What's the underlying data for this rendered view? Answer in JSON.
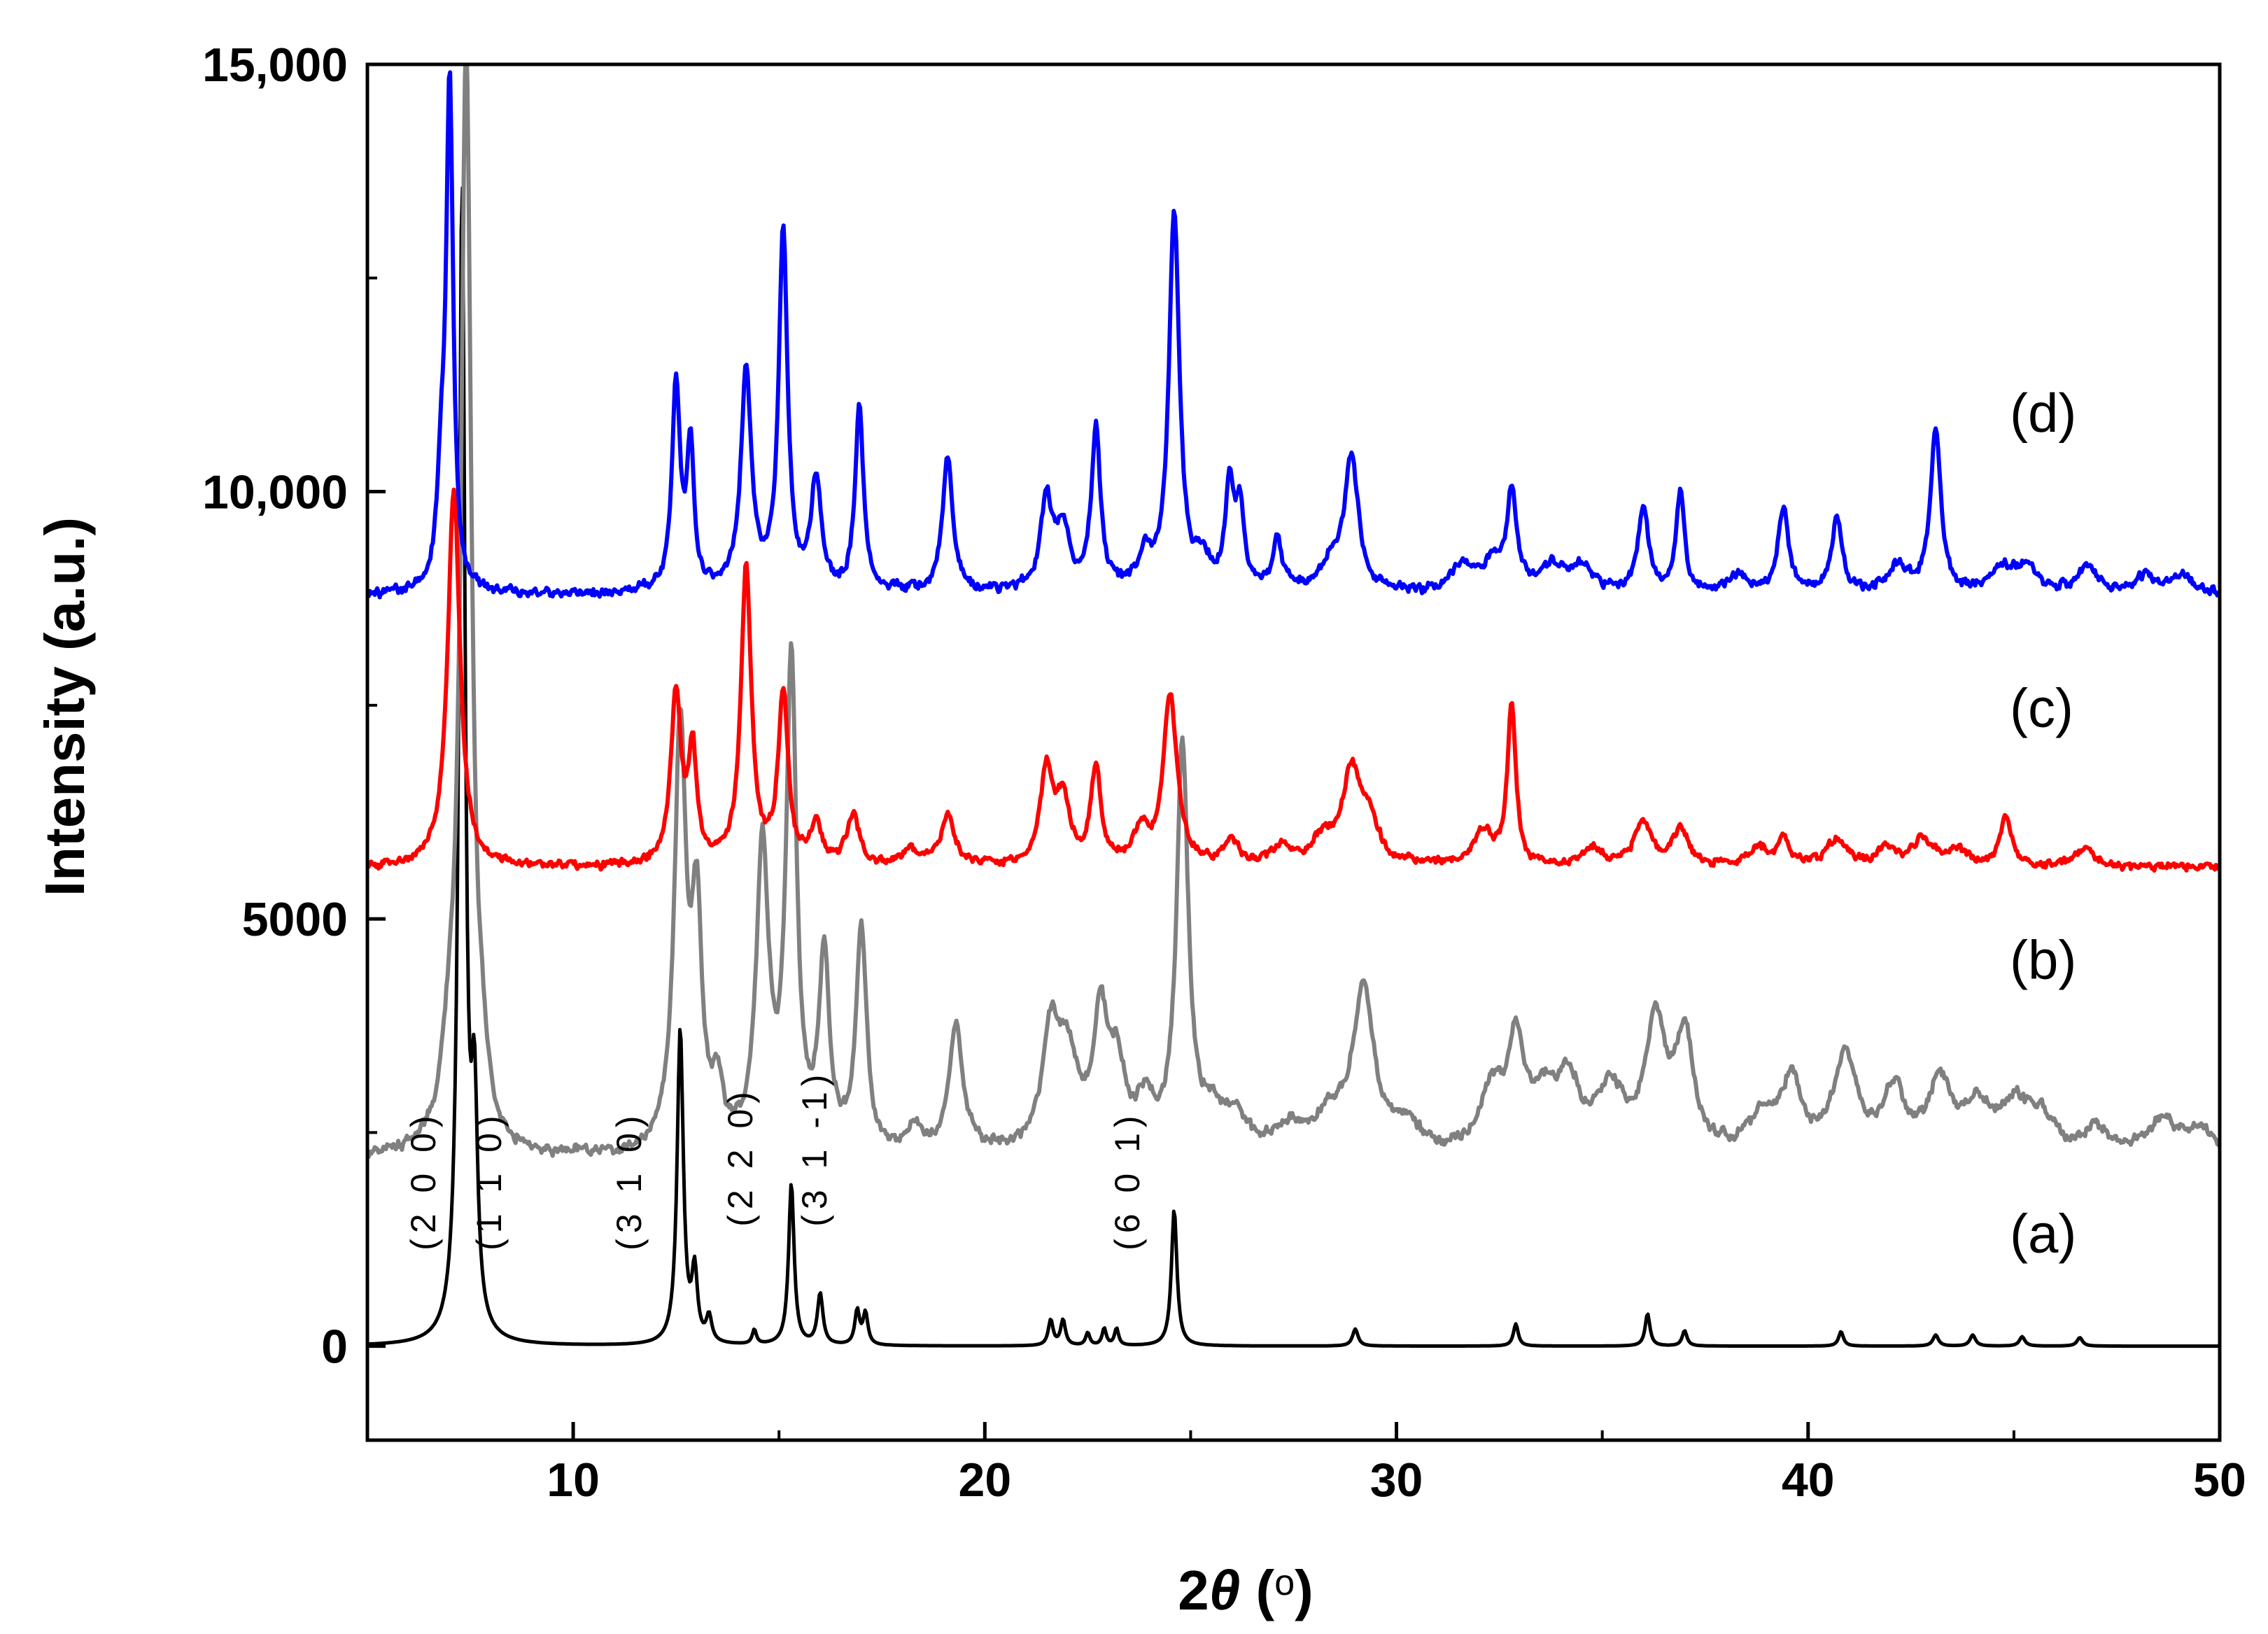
{
  "chart_data": {
    "type": "line",
    "title": "",
    "xlabel": "2θ (o)",
    "ylabel": "Intensity (a.u.)",
    "xlim": [
      5,
      50
    ],
    "ylim": [
      -1100,
      15000
    ],
    "x_ticks": [
      {
        "value": 10,
        "label": "10"
      },
      {
        "value": 20,
        "label": "20"
      },
      {
        "value": 30,
        "label": "30"
      },
      {
        "value": 40,
        "label": "40"
      },
      {
        "value": 50,
        "label": "50"
      }
    ],
    "y_ticks": [
      {
        "value": 0,
        "label": "0"
      },
      {
        "value": 5000,
        "label": "5000"
      },
      {
        "value": 10000,
        "label": "10,000"
      },
      {
        "value": 15000,
        "label": "15,000"
      }
    ],
    "legend": "none",
    "grid": false,
    "series": [
      {
        "name": "(a)",
        "color": "#000000",
        "offset": 0,
        "noise": 0,
        "peaks": [
          [
            7.3,
            13500,
            0.09
          ],
          [
            7.6,
            2500,
            0.09
          ],
          [
            12.6,
            3700,
            0.09
          ],
          [
            12.95,
            800,
            0.08
          ],
          [
            13.3,
            300,
            0.08
          ],
          [
            14.4,
            170,
            0.06
          ],
          [
            15.3,
            1900,
            0.08
          ],
          [
            16.0,
            600,
            0.08
          ],
          [
            16.9,
            400,
            0.07
          ],
          [
            17.1,
            370,
            0.07
          ],
          [
            21.6,
            300,
            0.07
          ],
          [
            21.9,
            300,
            0.07
          ],
          [
            22.5,
            150,
            0.06
          ],
          [
            22.9,
            200,
            0.06
          ],
          [
            23.2,
            200,
            0.06
          ],
          [
            24.6,
            1600,
            0.08
          ],
          [
            29.0,
            200,
            0.08
          ],
          [
            32.9,
            260,
            0.07
          ],
          [
            36.1,
            380,
            0.07
          ],
          [
            37.0,
            180,
            0.07
          ],
          [
            40.8,
            170,
            0.07
          ],
          [
            43.1,
            130,
            0.08
          ],
          [
            44.0,
            130,
            0.08
          ],
          [
            45.2,
            110,
            0.08
          ],
          [
            46.6,
            100,
            0.08
          ]
        ]
      },
      {
        "name": "(b)",
        "color": "#808080",
        "offset": 2200,
        "noise": 80,
        "peaks": [
          [
            7.0,
            900,
            0.25
          ],
          [
            7.4,
            12800,
            0.15
          ],
          [
            7.8,
            500,
            0.15
          ],
          [
            12.6,
            4900,
            0.17
          ],
          [
            13.0,
            2600,
            0.15
          ],
          [
            13.5,
            700,
            0.15
          ],
          [
            14.6,
            3500,
            0.18
          ],
          [
            15.3,
            5700,
            0.15
          ],
          [
            16.1,
            2200,
            0.15
          ],
          [
            17.0,
            2600,
            0.15
          ],
          [
            18.3,
            300,
            0.2
          ],
          [
            19.3,
            1500,
            0.2
          ],
          [
            21.6,
            1300,
            0.25
          ],
          [
            22.0,
            1000,
            0.3
          ],
          [
            22.8,
            1500,
            0.2
          ],
          [
            23.2,
            900,
            0.25
          ],
          [
            23.9,
            500,
            0.25
          ],
          [
            24.8,
            4700,
            0.17
          ],
          [
            25.5,
            400,
            0.3
          ],
          [
            26.1,
            400,
            0.3
          ],
          [
            27.4,
            300,
            0.4
          ],
          [
            28.4,
            400,
            0.4
          ],
          [
            29.2,
            1900,
            0.3
          ],
          [
            30.2,
            300,
            0.4
          ],
          [
            32.3,
            700,
            0.3
          ],
          [
            32.9,
            1200,
            0.25
          ],
          [
            33.6,
            600,
            0.4
          ],
          [
            34.2,
            700,
            0.3
          ],
          [
            35.2,
            700,
            0.4
          ],
          [
            36.3,
            1500,
            0.3
          ],
          [
            37.0,
            1300,
            0.25
          ],
          [
            38.9,
            400,
            0.4
          ],
          [
            39.6,
            800,
            0.3
          ],
          [
            40.9,
            1100,
            0.35
          ],
          [
            42.1,
            700,
            0.3
          ],
          [
            43.2,
            800,
            0.35
          ],
          [
            44.1,
            500,
            0.4
          ],
          [
            45.0,
            500,
            0.4
          ],
          [
            45.6,
            400,
            0.4
          ],
          [
            47.0,
            300,
            0.4
          ],
          [
            48.6,
            400,
            0.4
          ],
          [
            49.5,
            300,
            0.4
          ]
        ]
      },
      {
        "name": "(c)",
        "color": "#ff0000",
        "offset": 5600,
        "noise": 60,
        "peaks": [
          [
            7.1,
            4400,
            0.18
          ],
          [
            12.5,
            2000,
            0.15
          ],
          [
            12.9,
            1300,
            0.12
          ],
          [
            14.2,
            3500,
            0.15
          ],
          [
            15.1,
            2000,
            0.14
          ],
          [
            15.9,
            500,
            0.15
          ],
          [
            16.8,
            600,
            0.18
          ],
          [
            18.2,
            200,
            0.2
          ],
          [
            19.1,
            600,
            0.2
          ],
          [
            21.5,
            1100,
            0.18
          ],
          [
            21.9,
            700,
            0.2
          ],
          [
            22.7,
            1100,
            0.15
          ],
          [
            23.8,
            400,
            0.2
          ],
          [
            24.5,
            2000,
            0.2
          ],
          [
            26.0,
            300,
            0.2
          ],
          [
            27.2,
            200,
            0.3
          ],
          [
            28.2,
            300,
            0.3
          ],
          [
            28.9,
            1000,
            0.25
          ],
          [
            29.3,
            500,
            0.3
          ],
          [
            32.1,
            400,
            0.3
          ],
          [
            32.8,
            1900,
            0.12
          ],
          [
            34.8,
            200,
            0.3
          ],
          [
            36.0,
            500,
            0.25
          ],
          [
            36.9,
            400,
            0.25
          ],
          [
            38.8,
            200,
            0.3
          ],
          [
            39.4,
            300,
            0.2
          ],
          [
            40.7,
            300,
            0.3
          ],
          [
            41.9,
            200,
            0.3
          ],
          [
            42.8,
            300,
            0.3
          ],
          [
            43.6,
            200,
            0.3
          ],
          [
            44.8,
            600,
            0.15
          ],
          [
            46.7,
            200,
            0.3
          ]
        ]
      },
      {
        "name": "(d)",
        "color": "#0000ff",
        "offset": 8800,
        "noise": 70,
        "peaks": [
          [
            6.8,
            1200,
            0.12
          ],
          [
            7.0,
            5900,
            0.1
          ],
          [
            12.5,
            2400,
            0.12
          ],
          [
            12.85,
            1700,
            0.1
          ],
          [
            14.2,
            2600,
            0.15
          ],
          [
            15.1,
            4200,
            0.13
          ],
          [
            15.9,
            1300,
            0.14
          ],
          [
            16.95,
            2200,
            0.12
          ],
          [
            19.1,
            1600,
            0.15
          ],
          [
            21.5,
            1000,
            0.18
          ],
          [
            21.9,
            700,
            0.2
          ],
          [
            22.7,
            1900,
            0.13
          ],
          [
            23.9,
            400,
            0.2
          ],
          [
            24.6,
            4400,
            0.15
          ],
          [
            25.3,
            300,
            0.25
          ],
          [
            25.95,
            1200,
            0.12
          ],
          [
            26.2,
            900,
            0.12
          ],
          [
            27.1,
            600,
            0.15
          ],
          [
            28.4,
            300,
            0.25
          ],
          [
            28.9,
            1600,
            0.2
          ],
          [
            31.6,
            300,
            0.3
          ],
          [
            32.3,
            300,
            0.3
          ],
          [
            32.8,
            1100,
            0.15
          ],
          [
            33.8,
            300,
            0.3
          ],
          [
            34.5,
            300,
            0.3
          ],
          [
            36.0,
            1000,
            0.15
          ],
          [
            36.9,
            1200,
            0.12
          ],
          [
            38.3,
            200,
            0.3
          ],
          [
            39.4,
            1000,
            0.15
          ],
          [
            40.7,
            900,
            0.15
          ],
          [
            42.2,
            300,
            0.3
          ],
          [
            43.1,
            1900,
            0.15
          ],
          [
            44.7,
            300,
            0.3
          ],
          [
            45.3,
            300,
            0.3
          ],
          [
            46.8,
            300,
            0.3
          ],
          [
            48.2,
            200,
            0.3
          ],
          [
            49.1,
            200,
            0.3
          ]
        ]
      }
    ],
    "series_labels": [
      {
        "text": "(a)",
        "x": 44.9,
        "y": 1100
      },
      {
        "text": "(b)",
        "x": 44.9,
        "y": 4300
      },
      {
        "text": "(c)",
        "x": 44.9,
        "y": 7250
      },
      {
        "text": "(d)",
        "x": 44.9,
        "y": 10700
      }
    ],
    "annotations": [
      {
        "text": "(2 0 0)",
        "x": 6.65,
        "y": 1120
      },
      {
        "text": "(1 1 0)",
        "x": 8.25,
        "y": 1120
      },
      {
        "text": "(3 1 0)",
        "x": 11.65,
        "y": 1120
      },
      {
        "text": "(2 2 0)",
        "x": 14.35,
        "y": 1400
      },
      {
        "text": "(3 1 -1)",
        "x": 16.15,
        "y": 1400
      },
      {
        "text": "(6 0 1)",
        "x": 23.75,
        "y": 1120
      }
    ]
  }
}
